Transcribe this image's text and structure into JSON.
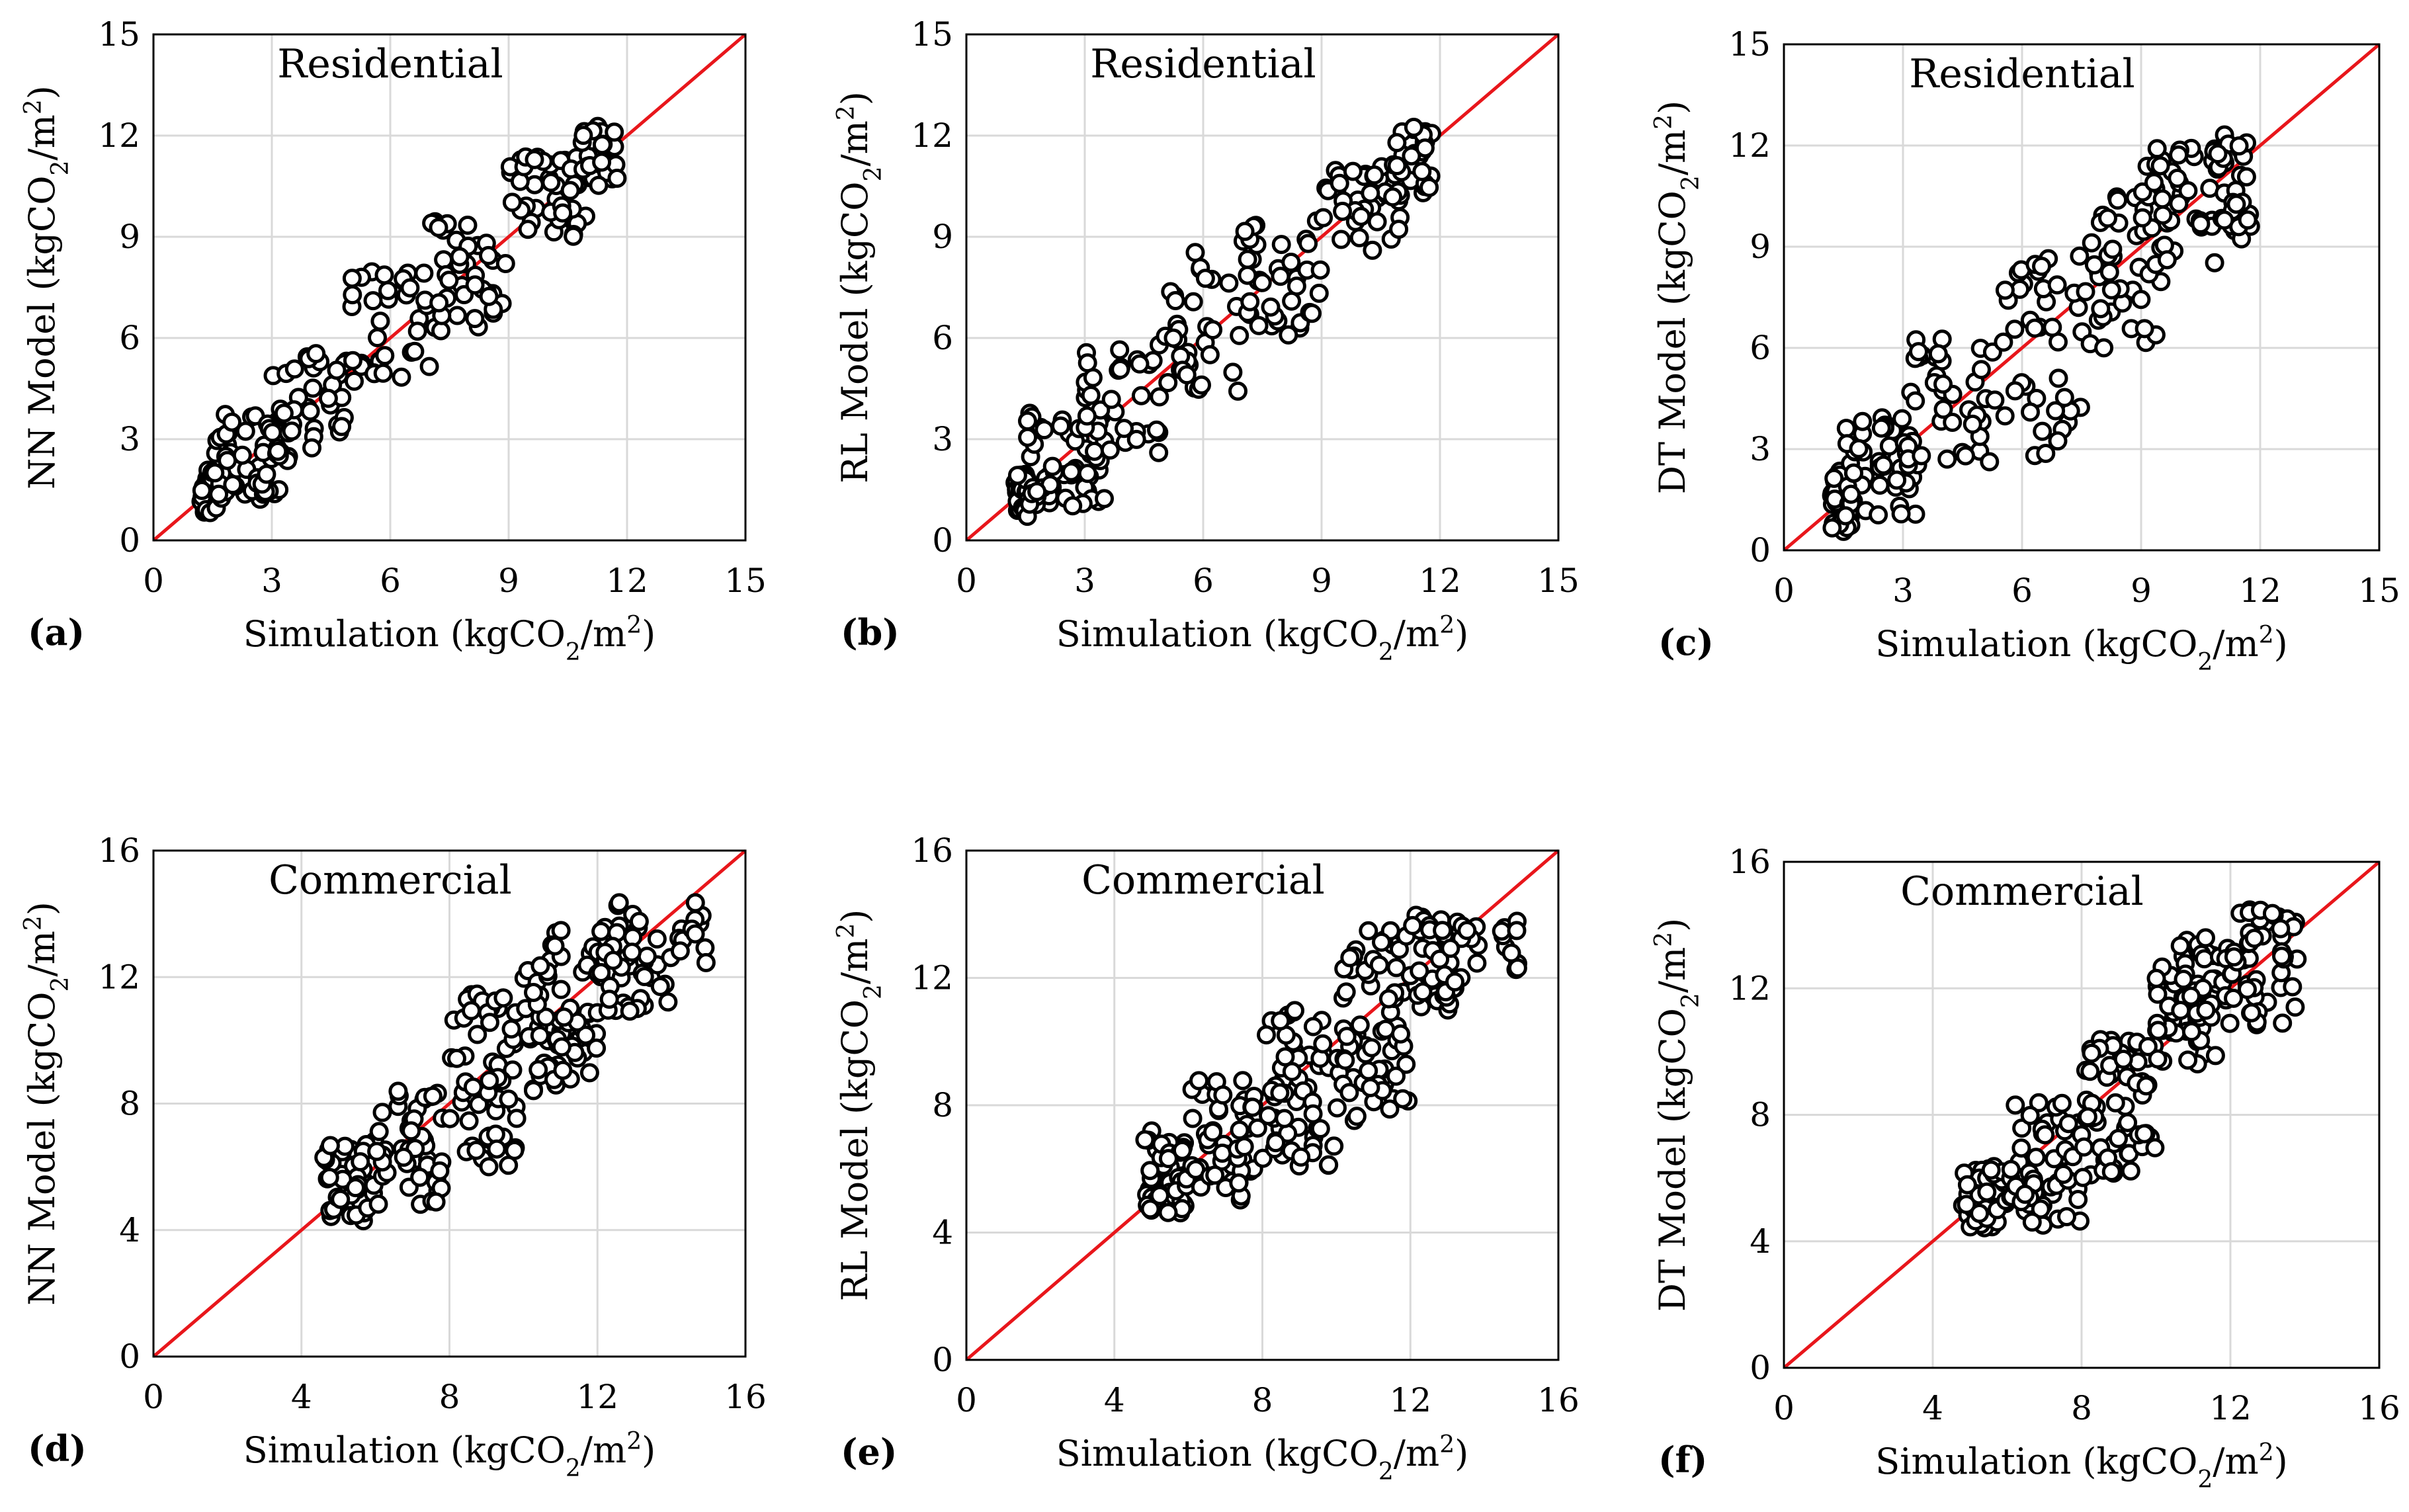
{
  "colors": {
    "point_stroke": "#000000",
    "point_fill": "#ffffff",
    "reference_line": "#e8161b",
    "frame": "#000000",
    "grid": "#d9d9d9"
  },
  "chart_data": [
    {
      "type": "scatter",
      "panel_label": "(a)",
      "series_label": "Residential",
      "xlabel": "Simulation (kgCO",
      "xlabel_sub": "2",
      "xlabel_mid": "/m",
      "xlabel_sup": "2",
      "xlabel_end": ")",
      "ylabel": "NN Model (kgCO",
      "ylabel_sub": "2",
      "ylabel_mid": "/m",
      "ylabel_sup": "2",
      "ylabel_end": ")",
      "xlim": [
        0,
        15
      ],
      "ylim": [
        0,
        15
      ],
      "ticks": [
        0,
        3,
        6,
        9,
        12,
        15
      ],
      "grid": true,
      "reference_line": "y = x",
      "bands": [
        {
          "x": [
            1.2,
            1.6
          ],
          "y": [
            0.8,
            2.1
          ],
          "n": 35
        },
        {
          "x": [
            1.5,
            3.5
          ],
          "y": [
            1.2,
            3.8
          ],
          "n": 60
        },
        {
          "x": [
            3.0,
            5.0
          ],
          "y": [
            2.6,
            5.6
          ],
          "n": 35
        },
        {
          "x": [
            5.0,
            7.0
          ],
          "y": [
            4.5,
            8.0
          ],
          "n": 35
        },
        {
          "x": [
            7.0,
            9.0
          ],
          "y": [
            6.2,
            9.5
          ],
          "n": 40
        },
        {
          "x": [
            9.0,
            11.0
          ],
          "y": [
            8.8,
            11.4
          ],
          "n": 40
        },
        {
          "x": [
            10.8,
            11.8
          ],
          "y": [
            10.5,
            12.3
          ],
          "n": 30
        }
      ]
    },
    {
      "type": "scatter",
      "panel_label": "(b)",
      "series_label": "Residential",
      "xlabel": "Simulation (kgCO",
      "xlabel_sub": "2",
      "xlabel_mid": "/m",
      "xlabel_sup": "2",
      "xlabel_end": ")",
      "ylabel": "RL Model (kgCO",
      "ylabel_sub": "2",
      "ylabel_mid": "/m",
      "ylabel_sup": "2",
      "ylabel_end": ")",
      "xlim": [
        0,
        15
      ],
      "ylim": [
        0,
        15
      ],
      "ticks": [
        0,
        3,
        6,
        9,
        12,
        15
      ],
      "grid": true,
      "reference_line": "y = x",
      "bands": [
        {
          "x": [
            1.2,
            1.6
          ],
          "y": [
            0.7,
            2.0
          ],
          "n": 35
        },
        {
          "x": [
            1.5,
            3.5
          ],
          "y": [
            1.0,
            3.8
          ],
          "n": 60
        },
        {
          "x": [
            3.0,
            5.0
          ],
          "y": [
            2.6,
            5.8
          ],
          "n": 35
        },
        {
          "x": [
            5.0,
            7.0
          ],
          "y": [
            4.3,
            8.6
          ],
          "n": 35
        },
        {
          "x": [
            7.0,
            9.0
          ],
          "y": [
            6.0,
            9.5
          ],
          "n": 40
        },
        {
          "x": [
            9.0,
            11.0
          ],
          "y": [
            8.5,
            11.2
          ],
          "n": 40
        },
        {
          "x": [
            10.8,
            11.8
          ],
          "y": [
            10.2,
            12.3
          ],
          "n": 30
        }
      ]
    },
    {
      "type": "scatter",
      "panel_label": "(c)",
      "series_label": "Residential",
      "xlabel": "Simulation (kgCO",
      "xlabel_sub": "2",
      "xlabel_mid": "/m",
      "xlabel_sup": "2",
      "xlabel_end": ")",
      "ylabel": "DT Model (kgCO",
      "ylabel_sub": "2",
      "ylabel_mid": "/m",
      "ylabel_sup": "2",
      "ylabel_end": ")",
      "xlim": [
        0,
        15
      ],
      "ylim": [
        0,
        15
      ],
      "ticks": [
        0,
        3,
        6,
        9,
        12,
        15
      ],
      "grid": true,
      "reference_line": "y = x",
      "bands": [
        {
          "x": [
            1.2,
            1.7
          ],
          "y": [
            0.5,
            2.4
          ],
          "n": 35
        },
        {
          "x": [
            1.5,
            3.5
          ],
          "y": [
            1.0,
            4.0
          ],
          "n": 55
        },
        {
          "x": [
            3.0,
            5.5
          ],
          "y": [
            2.3,
            6.5
          ],
          "n": 40
        },
        {
          "x": [
            5.5,
            7.5
          ],
          "y": [
            2.8,
            8.8
          ],
          "n": 40
        },
        {
          "x": [
            7.5,
            9.5
          ],
          "y": [
            6.0,
            10.5
          ],
          "n": 40
        },
        {
          "x": [
            9.0,
            11.0
          ],
          "y": [
            8.5,
            12.0
          ],
          "n": 40
        },
        {
          "x": [
            10.8,
            11.8
          ],
          "y": [
            9.2,
            12.5
          ],
          "n": 30
        }
      ]
    },
    {
      "type": "scatter",
      "panel_label": "(d)",
      "series_label": "Commercial",
      "xlabel": "Simulation (kgCO",
      "xlabel_sub": "2",
      "xlabel_mid": "/m",
      "xlabel_sup": "2",
      "xlabel_end": ")",
      "ylabel": "NN Model (kgCO",
      "ylabel_sub": "2",
      "ylabel_mid": "/m",
      "ylabel_sup": "2",
      "ylabel_end": ")",
      "xlim": [
        0,
        16
      ],
      "ylim": [
        0,
        16
      ],
      "ticks": [
        0,
        4,
        8,
        12,
        16
      ],
      "grid": true,
      "reference_line": "y = x",
      "bands": [
        {
          "x": [
            4.6,
            6.0
          ],
          "y": [
            4.2,
            7.0
          ],
          "n": 50
        },
        {
          "x": [
            6.0,
            8.0
          ],
          "y": [
            4.8,
            8.6
          ],
          "n": 50
        },
        {
          "x": [
            8.0,
            10.0
          ],
          "y": [
            6.0,
            11.5
          ],
          "n": 60
        },
        {
          "x": [
            10.0,
            12.0
          ],
          "y": [
            8.4,
            13.6
          ],
          "n": 70
        },
        {
          "x": [
            12.0,
            14.0
          ],
          "y": [
            10.8,
            14.4
          ],
          "n": 45
        },
        {
          "x": [
            14.2,
            15.0
          ],
          "y": [
            12.2,
            14.4
          ],
          "n": 12
        }
      ]
    },
    {
      "type": "scatter",
      "panel_label": "(e)",
      "series_label": "Commercial",
      "xlabel": "Simulation (kgCO",
      "xlabel_sub": "2",
      "xlabel_mid": "/m",
      "xlabel_sup": "2",
      "xlabel_end": ")",
      "ylabel": "RL Model (kgCO",
      "ylabel_sub": "2",
      "ylabel_mid": "/m",
      "ylabel_sup": "2",
      "ylabel_end": ")",
      "xlim": [
        0,
        16
      ],
      "ylim": [
        0,
        16
      ],
      "ticks": [
        0,
        4,
        8,
        12,
        16
      ],
      "grid": true,
      "reference_line": "y = x",
      "bands": [
        {
          "x": [
            4.8,
            6.0
          ],
          "y": [
            4.6,
            7.2
          ],
          "n": 50
        },
        {
          "x": [
            6.0,
            8.0
          ],
          "y": [
            5.0,
            8.8
          ],
          "n": 50
        },
        {
          "x": [
            8.0,
            10.0
          ],
          "y": [
            6.0,
            11.0
          ],
          "n": 60
        },
        {
          "x": [
            10.0,
            12.0
          ],
          "y": [
            7.4,
            13.5
          ],
          "n": 70
        },
        {
          "x": [
            12.0,
            14.0
          ],
          "y": [
            10.8,
            14.0
          ],
          "n": 45
        },
        {
          "x": [
            14.2,
            15.0
          ],
          "y": [
            12.2,
            13.8
          ],
          "n": 10
        }
      ]
    },
    {
      "type": "scatter",
      "panel_label": "(f)",
      "series_label": "Commercial",
      "xlabel": "Simulation (kgCO",
      "xlabel_sub": "2",
      "xlabel_mid": "/m",
      "xlabel_sup": "2",
      "xlabel_end": ")",
      "ylabel": "DT Model (kgCO",
      "ylabel_sub": "2",
      "ylabel_mid": "/m",
      "ylabel_sup": "2",
      "ylabel_end": ")",
      "xlim": [
        0,
        16
      ],
      "ylim": [
        0,
        16
      ],
      "ticks": [
        0,
        4,
        8,
        12,
        16
      ],
      "grid": true,
      "reference_line": "y = x",
      "bands": [
        {
          "x": [
            4.8,
            6.0
          ],
          "y": [
            4.4,
            6.4
          ],
          "n": 45
        },
        {
          "x": [
            6.0,
            8.0
          ],
          "y": [
            4.5,
            8.4
          ],
          "n": 55
        },
        {
          "x": [
            8.0,
            10.0
          ],
          "y": [
            6.0,
            10.4
          ],
          "n": 60
        },
        {
          "x": [
            10.0,
            12.0
          ],
          "y": [
            9.6,
            13.6
          ],
          "n": 70
        },
        {
          "x": [
            12.0,
            13.8
          ],
          "y": [
            10.4,
            14.5
          ],
          "n": 50
        }
      ]
    }
  ]
}
